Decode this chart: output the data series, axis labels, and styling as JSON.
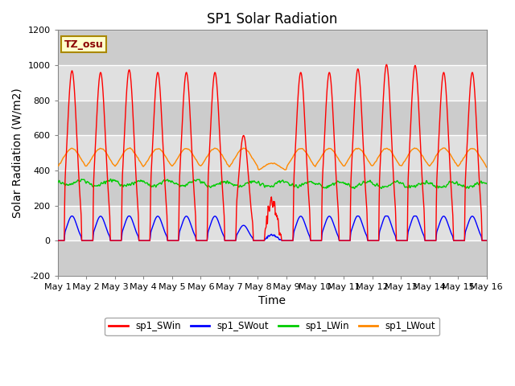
{
  "title": "SP1 Solar Radiation",
  "xlabel": "Time",
  "ylabel": "Solar Radiation (W/m2)",
  "ylim": [
    -200,
    1200
  ],
  "xlim": [
    0,
    15
  ],
  "yticks": [
    -200,
    0,
    200,
    400,
    600,
    800,
    1000,
    1200
  ],
  "xtick_labels": [
    "May 1",
    "May 2",
    "May 3",
    "May 4",
    "May 5",
    "May 6",
    "May 7",
    "May 8",
    "May 9",
    "May 10",
    "May 11",
    "May 12",
    "May 13",
    "May 14",
    "May 15",
    "May 16"
  ],
  "colors": {
    "SWin": "#ff0000",
    "SWout": "#0000ff",
    "LWin": "#00cc00",
    "LWout": "#ff8800"
  },
  "legend_labels": [
    "sp1_SWin",
    "sp1_SWout",
    "sp1_LWin",
    "sp1_LWout"
  ],
  "tz_label": "TZ_osu",
  "bg_color": "#ffffff",
  "plot_bg": "#e0e0e0",
  "title_fontsize": 12,
  "axis_label_fontsize": 10,
  "tick_fontsize": 8
}
